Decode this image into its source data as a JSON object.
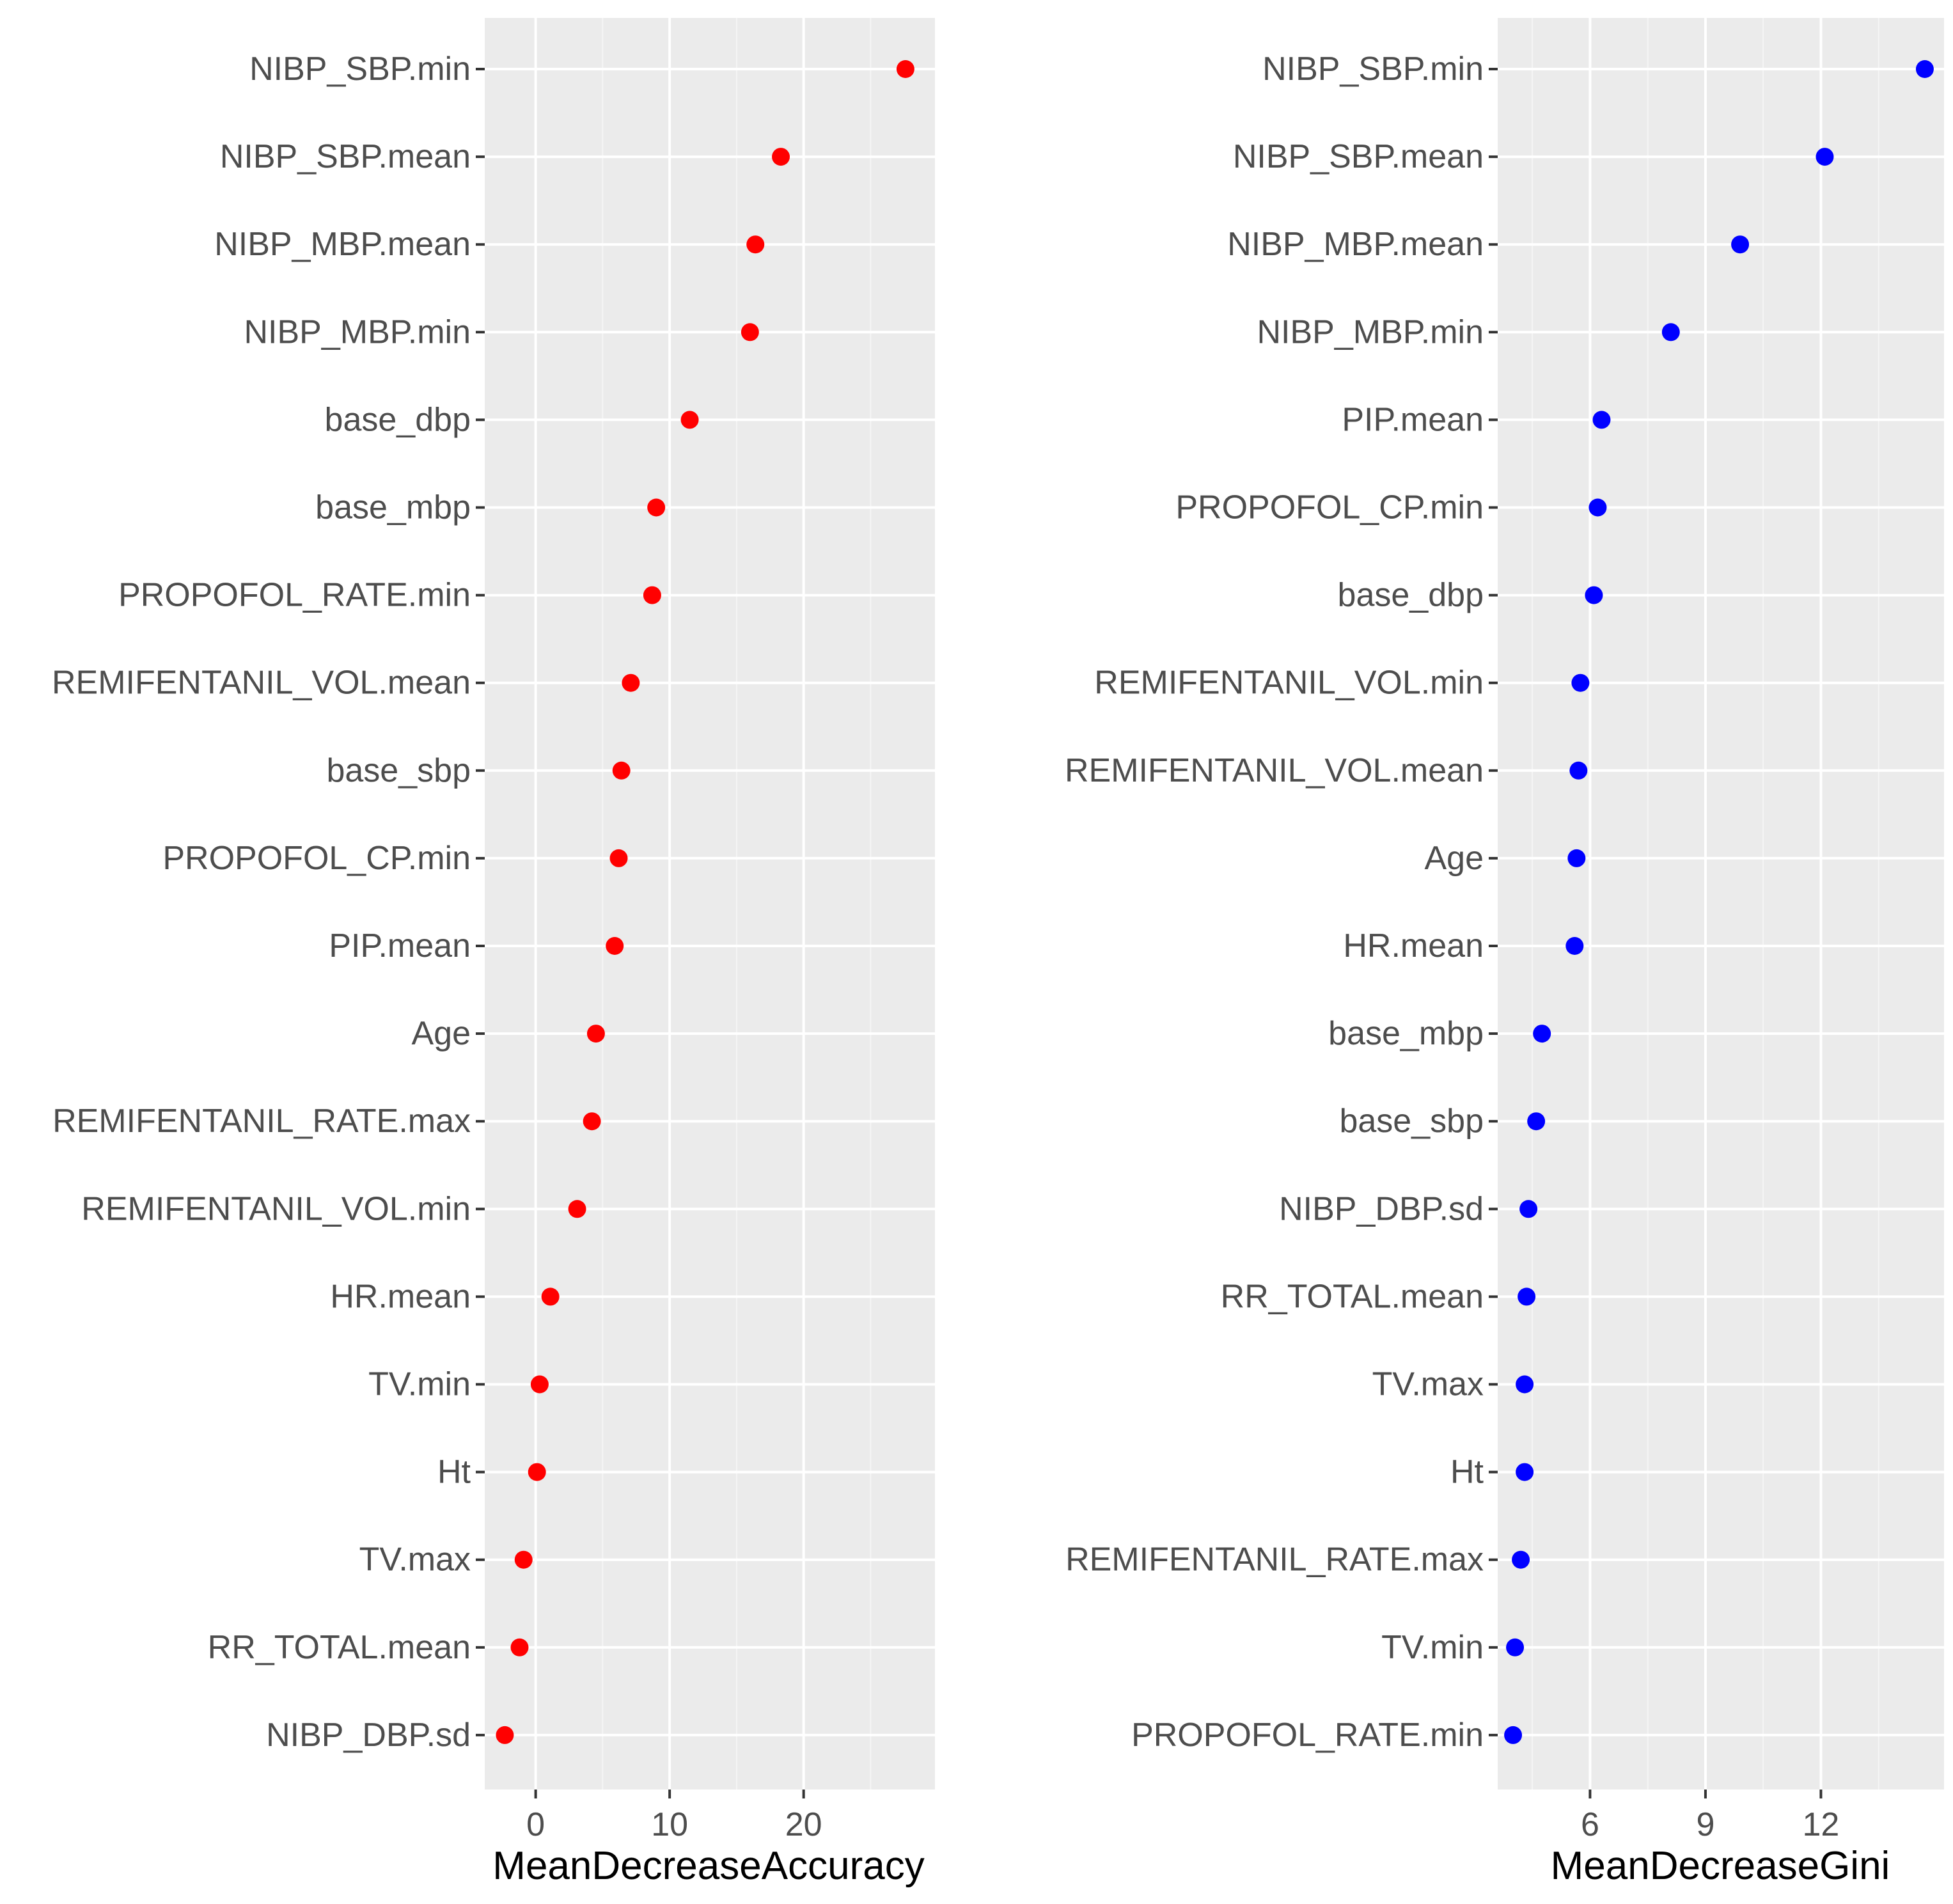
{
  "colors": {
    "panel_bg": "#ebebeb",
    "grid_major": "#ffffff",
    "grid_minor": "#f5f5f5",
    "tick": "#333333",
    "label": "#4d4d4d",
    "accuracy_points": "#ff0000",
    "gini_points": "#0000ff"
  },
  "chart_data": [
    {
      "type": "scatter",
      "xlabel": "MeanDecreaseAccuracy",
      "xlim": [
        -3.8,
        29.8
      ],
      "xticks": [
        0,
        10,
        20
      ],
      "tick_labels": [
        "0",
        "10",
        "20"
      ],
      "grid": true,
      "point_color": "#ff0000",
      "categories": [
        "NIBP_SBP.min",
        "NIBP_SBP.mean",
        "NIBP_MBP.mean",
        "NIBP_MBP.min",
        "base_dbp",
        "base_mbp",
        "PROPOFOL_RATE.min",
        "REMIFENTANIL_VOL.mean",
        "base_sbp",
        "PROPOFOL_CP.min",
        "PIP.mean",
        "Age",
        "REMIFENTANIL_RATE.max",
        "REMIFENTANIL_VOL.min",
        "HR.mean",
        "TV.min",
        "Ht",
        "TV.max",
        "RR_TOTAL.mean",
        "NIBP_DBP.sd"
      ],
      "values": [
        27.6,
        18.3,
        16.4,
        16.0,
        11.5,
        9.0,
        8.7,
        7.1,
        6.4,
        6.2,
        5.9,
        4.5,
        4.2,
        3.1,
        1.1,
        0.3,
        0.1,
        -0.9,
        -1.2,
        -2.3
      ]
    },
    {
      "type": "scatter",
      "xlabel": "MeanDecreaseGini",
      "xlim": [
        3.6,
        15.2
      ],
      "xticks": [
        6,
        9,
        12
      ],
      "tick_labels": [
        "6",
        "9",
        "12"
      ],
      "grid": true,
      "point_color": "#0000ff",
      "categories": [
        "NIBP_SBP.min",
        "NIBP_SBP.mean",
        "NIBP_MBP.mean",
        "NIBP_MBP.min",
        "PIP.mean",
        "PROPOFOL_CP.min",
        "base_dbp",
        "REMIFENTANIL_VOL.min",
        "REMIFENTANIL_VOL.mean",
        "Age",
        "HR.mean",
        "base_mbp",
        "base_sbp",
        "NIBP_DBP.sd",
        "RR_TOTAL.mean",
        "TV.max",
        "Ht",
        "REMIFENTANIL_RATE.max",
        "TV.min",
        "PROPOFOL_RATE.min"
      ],
      "values": [
        14.7,
        12.1,
        9.9,
        8.1,
        6.3,
        6.2,
        6.1,
        5.75,
        5.7,
        5.65,
        5.6,
        4.75,
        4.6,
        4.4,
        4.35,
        4.3,
        4.3,
        4.2,
        4.05,
        4.0
      ]
    }
  ]
}
